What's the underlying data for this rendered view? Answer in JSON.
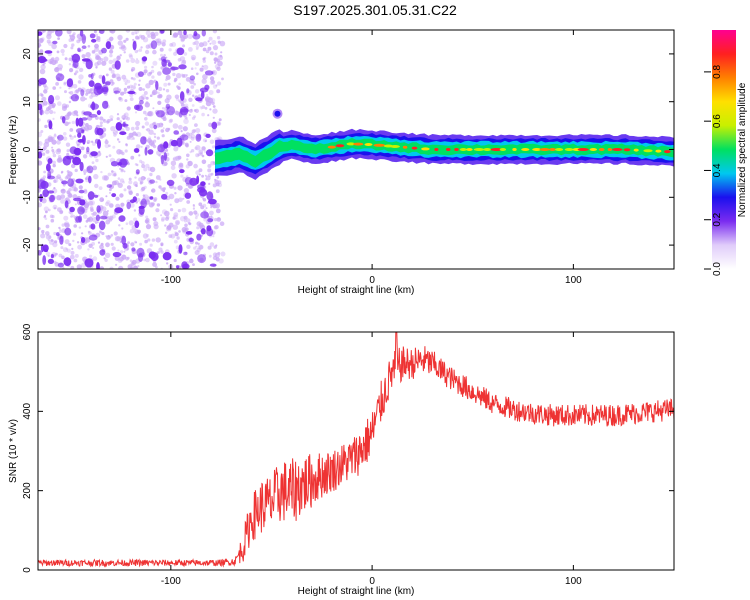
{
  "title": "S197.2025.301.05.31.C22",
  "colors": {
    "snr_line": "#ee3333",
    "scatter_purple": "#7a2cf0",
    "scatter_light": "#c9a6f6",
    "axis": "#000000"
  },
  "colorbar": {
    "label": "Normalized spectral amplitude",
    "ticks": [
      0.0,
      0.2,
      0.4,
      0.6,
      0.8
    ],
    "tick_labels": [
      "0.0",
      "0.2",
      "0.4",
      "0.6",
      "0.8"
    ],
    "range": [
      0,
      0.97
    ],
    "stops": [
      "#ffffff",
      "#e0ccfa",
      "#7a2cf0",
      "#1a10ee",
      "#00c8f0",
      "#00e060",
      "#c8f000",
      "#ffe000",
      "#ff8000",
      "#ff2020",
      "#ff0090"
    ]
  },
  "chart_data": [
    {
      "type": "heatmap",
      "name": "spectrogram",
      "xlabel": "Height of straight line (km)",
      "ylabel": "Frequency (Hz)",
      "xlim": [
        -166,
        150
      ],
      "ylim": [
        -25,
        25
      ],
      "x_ticks": [
        -100,
        0,
        100
      ],
      "x_tick_labels": [
        "-100",
        "0",
        "100"
      ],
      "y_ticks": [
        -20,
        -10,
        0,
        10,
        20
      ],
      "y_tick_labels": [
        "-20",
        "-10",
        "0",
        "10",
        "20"
      ],
      "noise_region_x": [
        -166,
        -78
      ],
      "ridge": [
        {
          "x": -78,
          "f": -2.0
        },
        {
          "x": -72,
          "f": -1.5
        },
        {
          "x": -65,
          "f": -1.0
        },
        {
          "x": -58,
          "f": -2.5
        },
        {
          "x": -52,
          "f": -1.0
        },
        {
          "x": -46,
          "f": 0.5
        },
        {
          "x": -40,
          "f": 1.0
        },
        {
          "x": -30,
          "f": 0.0
        },
        {
          "x": -20,
          "f": 0.5
        },
        {
          "x": -10,
          "f": 1.2
        },
        {
          "x": 0,
          "f": 1.0
        },
        {
          "x": 15,
          "f": 0.5
        },
        {
          "x": 30,
          "f": 0.0
        },
        {
          "x": 50,
          "f": 0.0
        },
        {
          "x": 75,
          "f": 0.0
        },
        {
          "x": 100,
          "f": 0.0
        },
        {
          "x": 125,
          "f": 0.0
        },
        {
          "x": 150,
          "f": -0.5
        }
      ],
      "blob": {
        "x": -47,
        "f": 7.5
      }
    },
    {
      "type": "line",
      "name": "snr",
      "xlabel": "Height of straight line (km)",
      "ylabel": "SNR (10 * v/v)",
      "xlim": [
        -166,
        150
      ],
      "ylim": [
        0,
        600
      ],
      "x_ticks": [
        -100,
        0,
        100
      ],
      "x_tick_labels": [
        "-100",
        "0",
        "100"
      ],
      "y_ticks": [
        0,
        200,
        400,
        600
      ],
      "y_tick_labels": [
        "0",
        "200",
        "400",
        "600"
      ],
      "series": [
        {
          "name": "SNR",
          "x": [
            -166,
            -150,
            -130,
            -110,
            -90,
            -75,
            -68,
            -64,
            -60,
            -55,
            -50,
            -45,
            -40,
            -35,
            -30,
            -25,
            -20,
            -15,
            -10,
            -5,
            0,
            5,
            10,
            15,
            20,
            25,
            30,
            40,
            50,
            60,
            70,
            80,
            90,
            100,
            110,
            120,
            130,
            140,
            150
          ],
          "values": [
            18,
            18,
            18,
            18,
            18,
            18,
            22,
            60,
            130,
            160,
            170,
            200,
            195,
            215,
            225,
            240,
            250,
            265,
            280,
            305,
            345,
            430,
            500,
            520,
            520,
            530,
            520,
            480,
            450,
            420,
            405,
            395,
            390,
            390,
            390,
            390,
            395,
            400,
            405
          ],
          "noise_amp": [
            8,
            8,
            8,
            8,
            8,
            8,
            10,
            40,
            60,
            70,
            75,
            80,
            85,
            80,
            70,
            60,
            55,
            55,
            55,
            60,
            60,
            55,
            50,
            45,
            40,
            40,
            35,
            30,
            30,
            28,
            28,
            28,
            28,
            28,
            28,
            28,
            28,
            28,
            28
          ]
        }
      ],
      "peak": {
        "x": 12,
        "value": 600
      }
    }
  ]
}
